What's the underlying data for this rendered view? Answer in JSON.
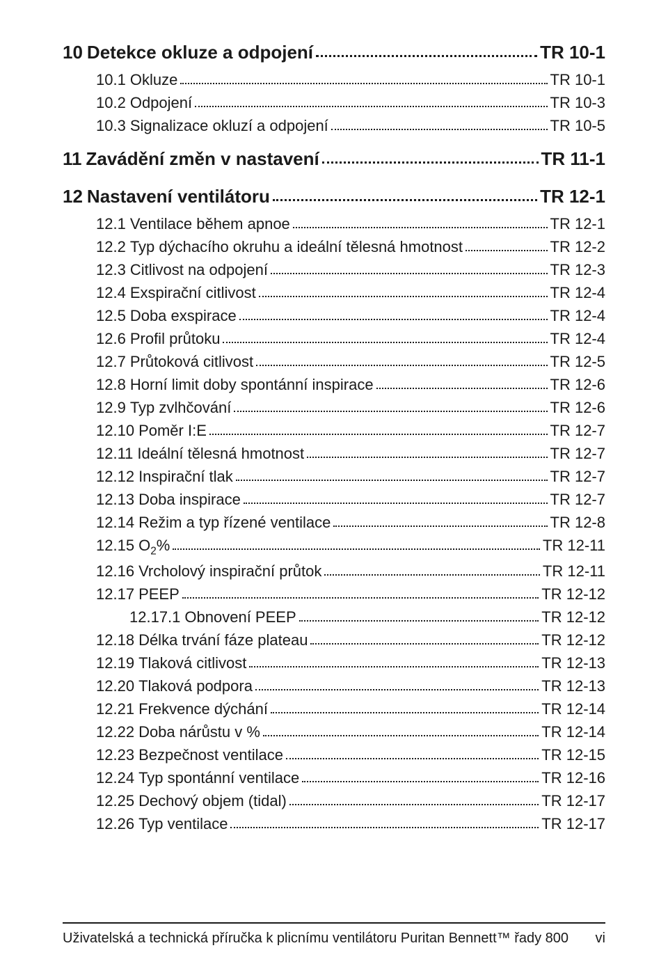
{
  "toc": [
    {
      "level": 1,
      "num": "10",
      "title": "Detekce okluze a odpojení",
      "page": "TR 10-1"
    },
    {
      "level": 2,
      "num": "10.1",
      "title": "Okluze",
      "page": "TR 10-1"
    },
    {
      "level": 2,
      "num": "10.2",
      "title": "Odpojení",
      "page": "TR 10-3"
    },
    {
      "level": 2,
      "num": "10.3",
      "title": "Signalizace okluzí a odpojení",
      "page": "TR 10-5"
    },
    {
      "level": 1,
      "num": "11",
      "title": "Zavádění změn v nastavení",
      "page": "TR 11-1"
    },
    {
      "level": 1,
      "num": "12",
      "title": "Nastavení ventilátoru",
      "page": "TR 12-1"
    },
    {
      "level": 2,
      "num": "12.1",
      "title": "Ventilace během apnoe",
      "page": "TR 12-1"
    },
    {
      "level": 2,
      "num": "12.2",
      "title": "Typ dýchacího okruhu a ideální tělesná hmotnost",
      "page": "TR 12-2"
    },
    {
      "level": 2,
      "num": "12.3",
      "title": "Citlivost na odpojení",
      "page": "TR 12-3"
    },
    {
      "level": 2,
      "num": "12.4",
      "title": "Exspirační citlivost",
      "page": "TR 12-4"
    },
    {
      "level": 2,
      "num": "12.5",
      "title": "Doba exspirace",
      "page": "TR 12-4"
    },
    {
      "level": 2,
      "num": "12.6",
      "title": "Profil průtoku",
      "page": "TR 12-4"
    },
    {
      "level": 2,
      "num": "12.7",
      "title": "Průtoková citlivost",
      "page": "TR 12-5"
    },
    {
      "level": 2,
      "num": "12.8",
      "title": "Horní limit doby spontánní inspirace",
      "page": "TR 12-6"
    },
    {
      "level": 2,
      "num": "12.9",
      "title": "Typ zvlhčování",
      "page": "TR 12-6"
    },
    {
      "level": 2,
      "num": "12.10",
      "title": "Poměr I:E",
      "page": "TR 12-7"
    },
    {
      "level": 2,
      "num": "12.11",
      "title": "Ideální tělesná hmotnost",
      "page": "TR 12-7"
    },
    {
      "level": 2,
      "num": "12.12",
      "title": "Inspirační tlak",
      "page": "TR 12-7"
    },
    {
      "level": 2,
      "num": "12.13",
      "title": "Doba inspirace",
      "page": "TR 12-7"
    },
    {
      "level": 2,
      "num": "12.14",
      "title": "Režim a typ řízené ventilace",
      "page": "TR 12-8"
    },
    {
      "level": 2,
      "num": "12.15",
      "title": "O₂%",
      "page": "TR 12-11",
      "special": "o2"
    },
    {
      "level": 2,
      "num": "12.16",
      "title": "Vrcholový inspirační průtok",
      "page": "TR 12-11"
    },
    {
      "level": 2,
      "num": "12.17",
      "title": "PEEP",
      "page": "TR 12-12"
    },
    {
      "level": 3,
      "num": "12.17.1",
      "title": "Obnovení PEEP",
      "page": "TR 12-12"
    },
    {
      "level": 2,
      "num": "12.18",
      "title": "Délka trvání fáze plateau",
      "page": "TR 12-12"
    },
    {
      "level": 2,
      "num": "12.19",
      "title": "Tlaková citlivost",
      "page": "TR 12-13"
    },
    {
      "level": 2,
      "num": "12.20",
      "title": "Tlaková podpora",
      "page": "TR 12-13"
    },
    {
      "level": 2,
      "num": "12.21",
      "title": "Frekvence dýchání",
      "page": "TR 12-14"
    },
    {
      "level": 2,
      "num": "12.22",
      "title": "Doba nárůstu v %",
      "page": "TR 12-14"
    },
    {
      "level": 2,
      "num": "12.23",
      "title": "Bezpečnost ventilace",
      "page": "TR 12-15"
    },
    {
      "level": 2,
      "num": "12.24",
      "title": "Typ spontánní ventilace",
      "page": "TR 12-16"
    },
    {
      "level": 2,
      "num": "12.25",
      "title": "Dechový objem (tidal)",
      "page": "TR 12-17"
    },
    {
      "level": 2,
      "num": "12.26",
      "title": "Typ ventilace",
      "page": "TR 12-17"
    }
  ],
  "footer": {
    "text": "Uživatelská a technická příručka k plicnímu ventilátoru Puritan Bennett™ řady 800",
    "page_number": "vi"
  }
}
